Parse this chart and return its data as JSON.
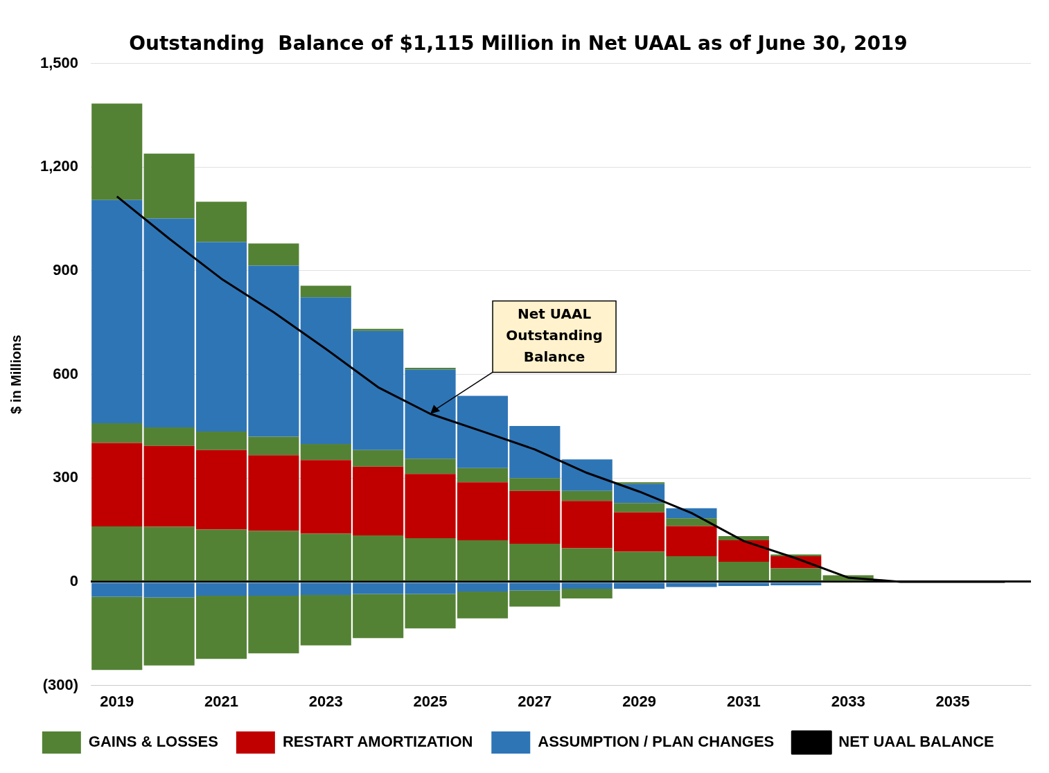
{
  "chart_data": {
    "type": "bar",
    "title": "Outstanding  Balance of $1,115 Million in Net UAAL as of June 30, 2019",
    "ylabel": "$ in Millions",
    "categories": [
      "2019",
      null,
      "2021",
      null,
      "2023",
      null,
      "2025",
      null,
      "2027",
      null,
      "2029",
      null,
      "2031",
      null,
      "2033",
      null,
      "2035",
      null
    ],
    "stacked": true,
    "grid": "y",
    "legend": "bottom",
    "ylim": [
      -300,
      1500
    ],
    "yticks": [
      {
        "value": -300,
        "label": "(300)"
      },
      0,
      300,
      600,
      900,
      {
        "value": 1200,
        "label": "1,200"
      },
      {
        "value": 1500,
        "label": "1,500"
      }
    ],
    "series": [
      {
        "name": "GAINS & LOSSES",
        "color": "#548235",
        "values": [
          160,
          159,
          151,
          147,
          139,
          134,
          126,
          120,
          110,
          97,
          87,
          74,
          58,
          39,
          19,
          null,
          null,
          null
        ]
      },
      {
        "name": "RESTART AMORTIZATION",
        "color": "#c00000",
        "values": [
          242,
          234,
          230,
          219,
          213,
          199,
          186,
          168,
          153,
          137,
          114,
          87,
          62,
          35,
          0,
          null,
          null,
          null
        ]
      },
      {
        "color": "#548235",
        "values": [
          57,
          54,
          54,
          54,
          47,
          48,
          44,
          41,
          37,
          29,
          27,
          23,
          12,
          5,
          0,
          null,
          null,
          null
        ]
      },
      {
        "name": "ASSUMPTION / PLAN CHANGES",
        "color": "#2e75b6",
        "values": [
          646,
          604,
          548,
          495,
          424,
          345,
          258,
          209,
          151,
          91,
          55,
          29,
          0,
          0,
          0,
          null,
          null,
          null
        ]
      },
      {
        "color": "#548235",
        "values": [
          279,
          188,
          117,
          64,
          34,
          6,
          5,
          0,
          0,
          0,
          5,
          0,
          0,
          0,
          0,
          null,
          null,
          null
        ]
      },
      {
        "color": "#2e75b6",
        "values": [
          -43,
          -45,
          -40,
          -40,
          -38,
          -35,
          -35,
          -28,
          -25,
          -20,
          -20,
          -15,
          -12,
          -10,
          0,
          null,
          null,
          null
        ]
      },
      {
        "color": "#548235",
        "values": [
          -212,
          -197,
          -183,
          -167,
          -146,
          -128,
          -100,
          -78,
          -47,
          -28,
          0,
          0,
          0,
          0,
          0,
          null,
          null,
          null
        ]
      },
      {
        "type": "line",
        "name": "NET UAAL BALANCE",
        "color": "#000000",
        "values": [
          1115,
          993,
          877,
          780,
          674,
          563,
          486,
          435,
          383,
          315,
          261,
          199,
          118,
          68,
          12,
          0,
          0,
          0
        ]
      }
    ],
    "annotations": [
      {
        "text": "Net UAAL Outstanding Balance",
        "x": "2025",
        "y": 486
      }
    ]
  }
}
